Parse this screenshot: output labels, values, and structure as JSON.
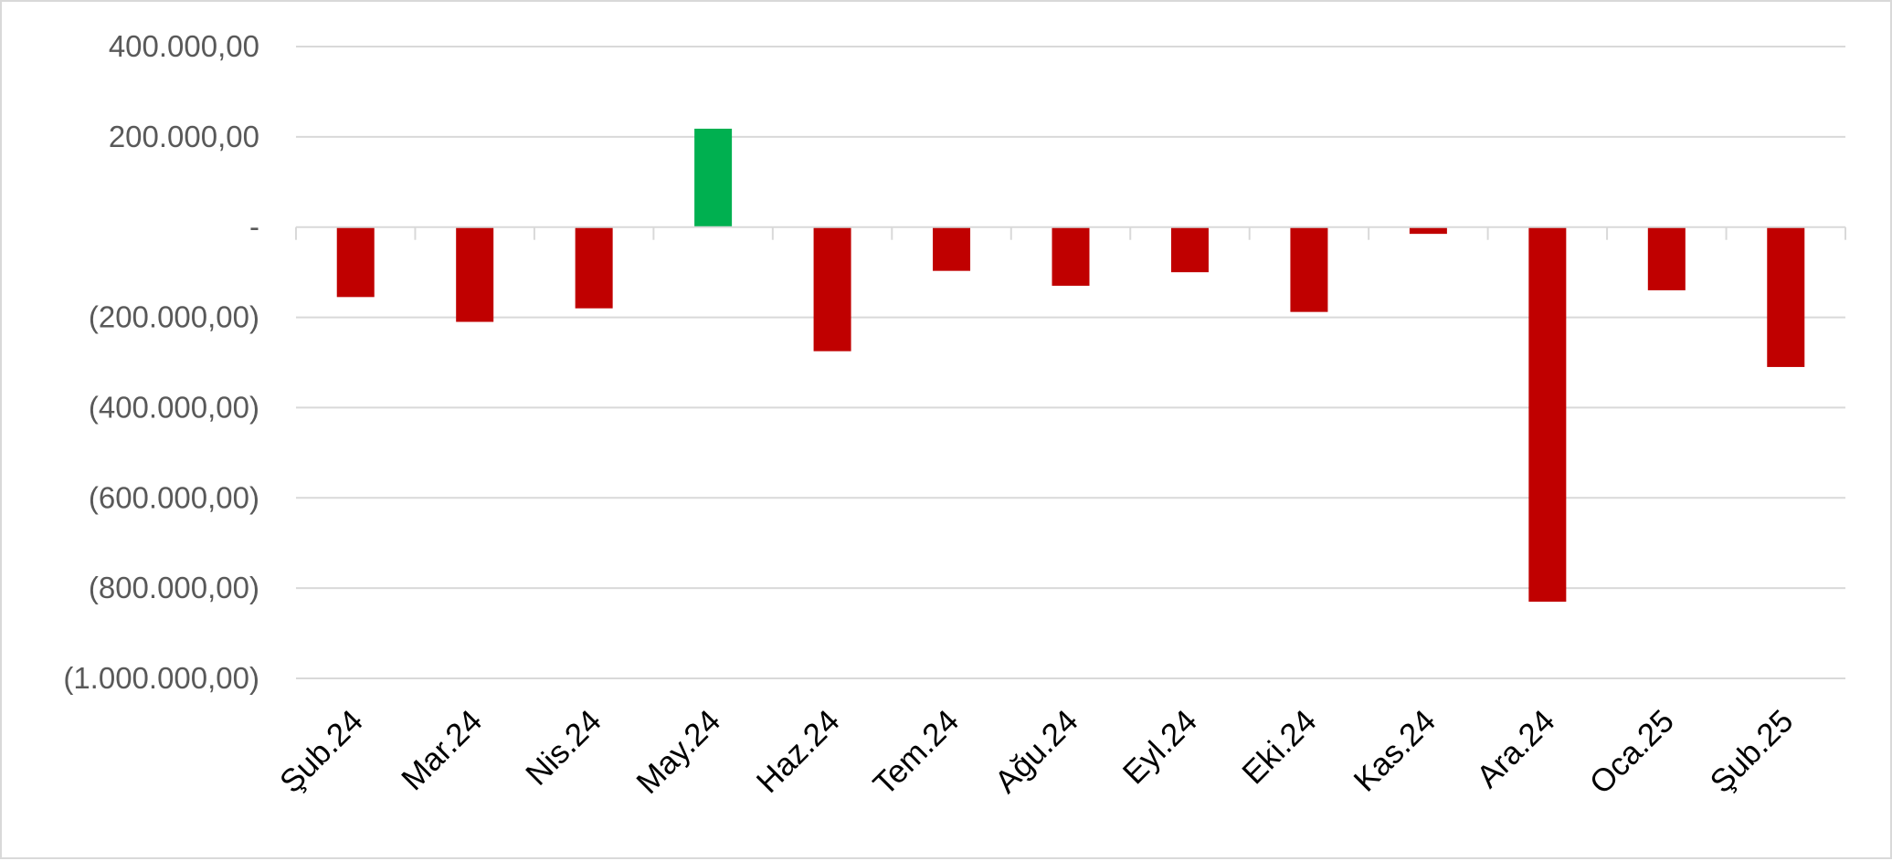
{
  "chart_data": {
    "type": "bar",
    "title": "",
    "xlabel": "",
    "ylabel": "",
    "categories": [
      "Şub.24",
      "Mar.24",
      "Nis.24",
      "May.24",
      "Haz.24",
      "Tem.24",
      "Ağu.24",
      "Eyl.24",
      "Eki.24",
      "Kas.24",
      "Ara.24",
      "Oca.25",
      "Şub.25"
    ],
    "values": [
      -155000,
      -210000,
      -180000,
      218000,
      -275000,
      -97000,
      -130000,
      -100000,
      -188000,
      -15000,
      -830000,
      -140000,
      -310000
    ],
    "ylim": [
      -1000000,
      400000
    ],
    "y_ticks": [
      400000,
      200000,
      0,
      -200000,
      -400000,
      -600000,
      -800000,
      -1000000
    ],
    "y_tick_labels": [
      "400.000,00",
      "200.000,00",
      "-",
      "(200.000,00)",
      "(400.000,00)",
      "(600.000,00)",
      "(800.000,00)",
      "(1.000.000,00)"
    ],
    "grid": true,
    "legend": "none",
    "colors": {
      "positive": "#00b050",
      "negative": "#c00000",
      "grid": "#d9d9d9",
      "tick_text": "#595959"
    }
  }
}
